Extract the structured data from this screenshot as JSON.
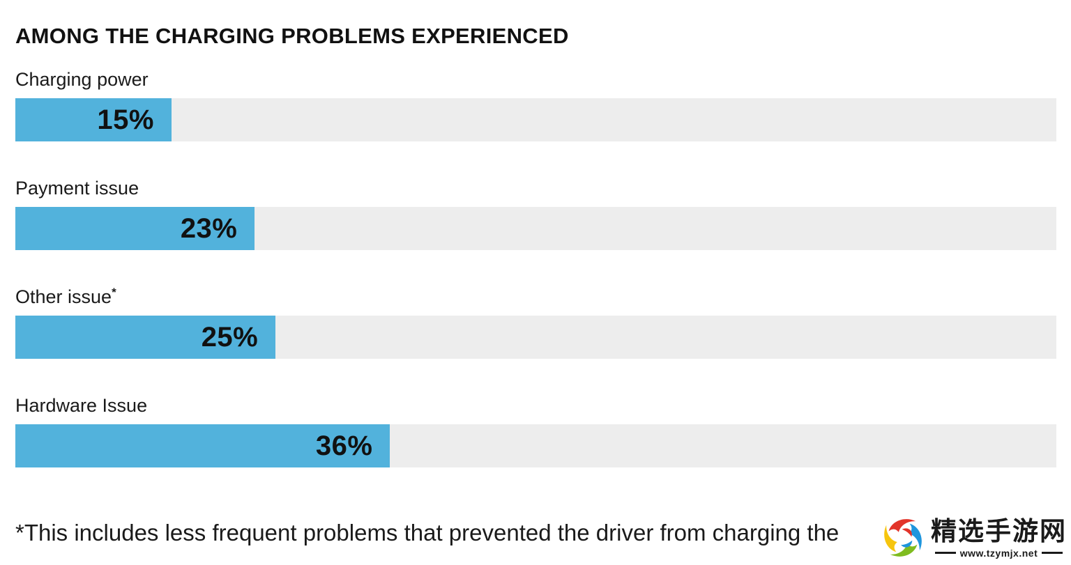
{
  "title": "AMONG THE CHARGING PROBLEMS EXPERIENCED",
  "chart_data": {
    "type": "bar",
    "orientation": "horizontal",
    "title": "AMONG THE CHARGING PROBLEMS EXPERIENCED",
    "categories": [
      "Charging power",
      "Payment issue",
      "Other issue*",
      "Hardware Issue"
    ],
    "values": [
      15,
      23,
      25,
      36
    ],
    "value_labels": [
      "15%",
      "23%",
      "25%",
      "36%"
    ],
    "xlim": [
      0,
      100
    ],
    "grid": false,
    "legend": false,
    "bar_color": "#52B2DC",
    "track_color": "#EDEDED",
    "footnote": "*This includes less frequent problems that prevented the driver from charging the"
  },
  "rows": [
    {
      "label": "Charging power",
      "superscript": "",
      "value": 15,
      "value_label": "15%"
    },
    {
      "label": "Payment issue",
      "superscript": "",
      "value": 23,
      "value_label": "23%"
    },
    {
      "label": "Other issue",
      "superscript": "*",
      "value": 25,
      "value_label": "25%"
    },
    {
      "label": "Hardware Issue",
      "superscript": "",
      "value": 36,
      "value_label": "36%"
    }
  ],
  "footnote": "*This includes less frequent problems that prevented the driver from charging the",
  "watermark": {
    "site_name": "精选手游网",
    "site_url": "www.tzymjx.net"
  },
  "colors": {
    "background": "#FFFFFF",
    "text": "#141414",
    "bar_fill": "#52B2DC",
    "bar_track": "#EDEDED",
    "logo_red": "#E2342A",
    "logo_blue": "#1E95DD",
    "logo_green": "#7FBC1F",
    "logo_yellow": "#F6C50E"
  }
}
